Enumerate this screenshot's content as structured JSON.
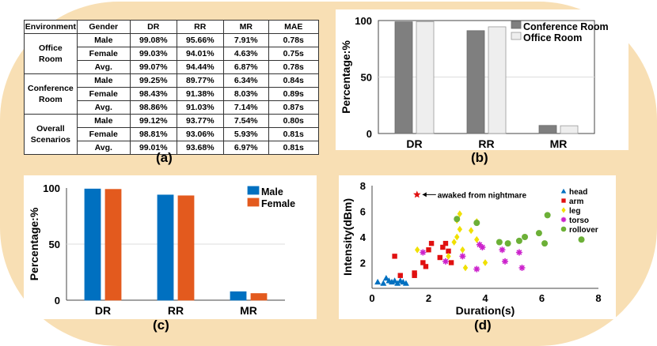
{
  "colors": {
    "background_blob": "#f8dfb4",
    "male": "#0070c0",
    "female": "#e35a1e",
    "conference": "#7f7f7f",
    "office": "#eeeeee"
  },
  "captions": {
    "a": "(a)",
    "b": "(b)",
    "c": "(c)",
    "d": "(d)"
  },
  "table": {
    "headers": [
      "Environment",
      "Gender",
      "DR",
      "RR",
      "MR",
      "MAE"
    ],
    "groups": [
      {
        "environment": "Office Room",
        "rows": [
          [
            "Male",
            "99.08%",
            "95.66%",
            "7.91%",
            "0.78s"
          ],
          [
            "Female",
            "99.03%",
            "94.01%",
            "4.63%",
            "0.75s"
          ],
          [
            "Avg.",
            "99.07%",
            "94.44%",
            "6.87%",
            "0.78s"
          ]
        ]
      },
      {
        "environment": "Conference Room",
        "rows": [
          [
            "Male",
            "99.25%",
            "89.77%",
            "6.34%",
            "0.84s"
          ],
          [
            "Female",
            "98.43%",
            "91.38%",
            "8.03%",
            "0.89s"
          ],
          [
            "Avg.",
            "98.86%",
            "91.03%",
            "7.14%",
            "0.87s"
          ]
        ]
      },
      {
        "environment": "Overall Scenarios",
        "rows": [
          [
            "Male",
            "99.12%",
            "93.77%",
            "7.54%",
            "0.80s"
          ],
          [
            "Female",
            "98.81%",
            "93.06%",
            "5.93%",
            "0.81s"
          ],
          [
            "Avg.",
            "99.01%",
            "93.68%",
            "6.97%",
            "0.81s"
          ]
        ]
      }
    ]
  },
  "chart_data": [
    {
      "id": "b",
      "type": "bar",
      "categories": [
        "DR",
        "RR",
        "MR"
      ],
      "series": [
        {
          "name": "Conference Room",
          "values": [
            98.86,
            91.03,
            7.14
          ]
        },
        {
          "name": "Office Room",
          "values": [
            99.07,
            94.44,
            6.87
          ]
        }
      ],
      "ylabel": "Percentage:%",
      "ylim": [
        0,
        100
      ],
      "yticks": [
        0,
        50,
        100
      ],
      "legend": "top-right"
    },
    {
      "id": "c",
      "type": "bar",
      "categories": [
        "DR",
        "RR",
        "MR"
      ],
      "series": [
        {
          "name": "Male",
          "values": [
            99.12,
            93.77,
            7.54
          ]
        },
        {
          "name": "Female",
          "values": [
            98.81,
            93.06,
            5.93
          ]
        }
      ],
      "ylabel": "Percentage:%",
      "ylim": [
        0,
        100
      ],
      "yticks": [
        0,
        50,
        100
      ],
      "legend": "top-right"
    },
    {
      "id": "d",
      "type": "scatter",
      "xlabel": "Duration(s)",
      "ylabel": "Intensity(dBm)",
      "xlim": [
        0,
        8
      ],
      "ylim": [
        0,
        8
      ],
      "xticks": [
        0,
        2,
        4,
        6,
        8
      ],
      "yticks": [
        2,
        4,
        6,
        8
      ],
      "annotation": {
        "text": "awaked from nightmare",
        "x": 1.7,
        "y": 7.3
      },
      "series": [
        {
          "name": "head",
          "marker": "triangle",
          "color": "#0070c0",
          "points": [
            [
              0.2,
              0.5
            ],
            [
              0.4,
              0.4
            ],
            [
              0.5,
              0.8
            ],
            [
              0.6,
              0.6
            ],
            [
              0.7,
              0.5
            ],
            [
              0.8,
              0.6
            ],
            [
              0.9,
              0.4
            ],
            [
              1.0,
              0.6
            ],
            [
              1.1,
              0.5
            ],
            [
              1.2,
              0.4
            ]
          ]
        },
        {
          "name": "arm",
          "marker": "square",
          "color": "#e01010",
          "points": [
            [
              0.8,
              2.5
            ],
            [
              1.0,
              1.0
            ],
            [
              1.5,
              1.2
            ],
            [
              1.5,
              1.0
            ],
            [
              1.8,
              2.0
            ],
            [
              1.9,
              1.7
            ],
            [
              2.0,
              3.0
            ],
            [
              2.1,
              3.5
            ],
            [
              2.4,
              2.4
            ],
            [
              2.5,
              3.2
            ],
            [
              2.6,
              3.5
            ],
            [
              2.7,
              2.9
            ],
            [
              2.8,
              2.0
            ]
          ]
        },
        {
          "name": "leg",
          "marker": "diamond",
          "color": "#f0e000",
          "points": [
            [
              1.6,
              3.0
            ],
            [
              2.7,
              2.5
            ],
            [
              2.9,
              3.6
            ],
            [
              3.0,
              4.0
            ],
            [
              3.0,
              5.3
            ],
            [
              3.1,
              5.8
            ],
            [
              3.1,
              4.6
            ],
            [
              3.2,
              3.0
            ],
            [
              3.3,
              1.6
            ],
            [
              3.5,
              4.5
            ],
            [
              3.7,
              5.2
            ],
            [
              3.7,
              3.8
            ],
            [
              4.0,
              2.0
            ]
          ]
        },
        {
          "name": "torso",
          "marker": "star",
          "color": "#cc22cc",
          "points": [
            [
              1.8,
              2.8
            ],
            [
              2.6,
              2.1
            ],
            [
              3.2,
              2.5
            ],
            [
              3.7,
              1.5
            ],
            [
              3.8,
              3.4
            ],
            [
              3.9,
              3.2
            ],
            [
              4.6,
              3.0
            ],
            [
              4.7,
              2.1
            ],
            [
              5.2,
              2.8
            ],
            [
              5.3,
              1.6
            ]
          ]
        },
        {
          "name": "rollover",
          "marker": "circle",
          "color": "#6cb037",
          "points": [
            [
              3.0,
              5.4
            ],
            [
              3.7,
              5.1
            ],
            [
              4.5,
              3.6
            ],
            [
              4.8,
              3.5
            ],
            [
              5.2,
              3.7
            ],
            [
              5.4,
              4.0
            ],
            [
              5.9,
              4.3
            ],
            [
              6.1,
              3.5
            ],
            [
              6.2,
              5.7
            ],
            [
              7.4,
              3.8
            ]
          ]
        }
      ]
    }
  ]
}
